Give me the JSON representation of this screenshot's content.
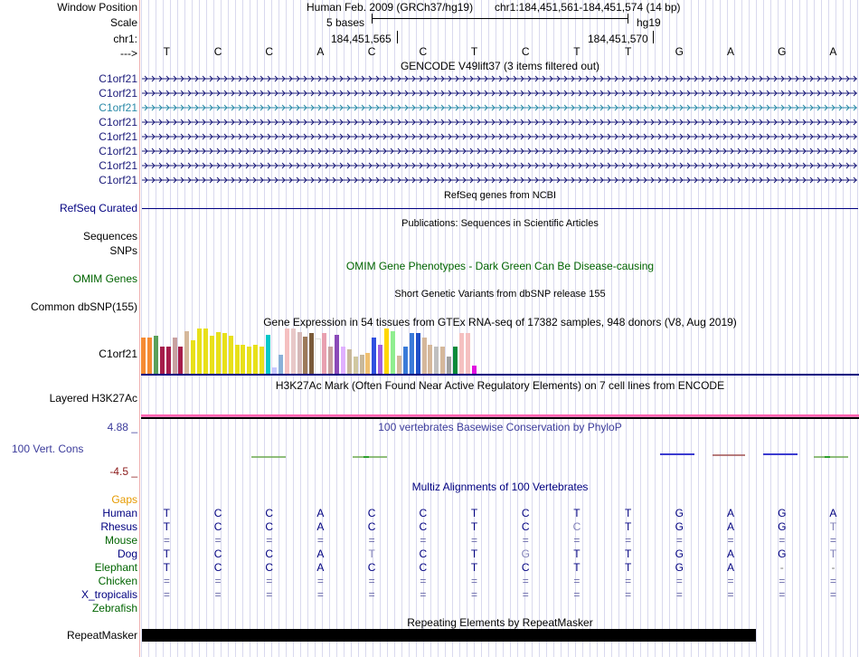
{
  "header": {
    "window_position_label": "Window Position",
    "scale_label": "Scale",
    "chrom_label": "chr1:",
    "arrow_label": "--->",
    "assembly": "Human Feb. 2009 (GRCh37/hg19)",
    "position": "chr1:184,451,561-184,451,574 (14 bp)",
    "scale_text": "5 bases",
    "db": "hg19",
    "coord_left": "184,451,565",
    "coord_right": "184,451,570"
  },
  "sequence": [
    "T",
    "C",
    "C",
    "A",
    "C",
    "C",
    "T",
    "C",
    "T",
    "T",
    "G",
    "A",
    "G",
    "A"
  ],
  "gencode": {
    "title": "GENCODE V49lift37 (3 items filtered out)",
    "items": [
      {
        "label": "C1orf21",
        "color": "#1a1a7a"
      },
      {
        "label": "C1orf21",
        "color": "#1a1a7a"
      },
      {
        "label": "C1orf21",
        "color": "#2a8aa8"
      },
      {
        "label": "C1orf21",
        "color": "#1a1a7a"
      },
      {
        "label": "C1orf21",
        "color": "#1a1a7a"
      },
      {
        "label": "C1orf21",
        "color": "#1a1a7a"
      },
      {
        "label": "C1orf21",
        "color": "#1a1a7a"
      },
      {
        "label": "C1orf21",
        "color": "#1a1a7a"
      }
    ]
  },
  "refseq": {
    "title": "RefSeq genes from NCBI",
    "label": "RefSeq Curated"
  },
  "publications": {
    "title": "Publications: Sequences in Scientific Articles",
    "label": "Sequences"
  },
  "snps": {
    "label": "SNPs"
  },
  "omim": {
    "title": "OMIM Gene Phenotypes - Dark Green Can Be Disease-causing",
    "label": "OMIM Genes"
  },
  "dbsnp": {
    "title": "Short Genetic Variants from dbSNP release 155",
    "label": "Common dbSNP(155)"
  },
  "gtex": {
    "title": "Gene Expression in 54 tissues from GTEx RNA-seq of 17382 samples, 948 donors (V8, Aug 2019)",
    "label": "C1orf21",
    "values": [
      0.78,
      0.78,
      0.82,
      0.58,
      0.58,
      0.78,
      0.58,
      0.92,
      0.72,
      0.98,
      0.98,
      0.82,
      0.9,
      0.88,
      0.82,
      0.62,
      0.62,
      0.58,
      0.62,
      0.58,
      0.85,
      0.14,
      0.42,
      0.98,
      0.98,
      0.9,
      0.8,
      0.88,
      0.74,
      0.88,
      0.58,
      0.85,
      0.58,
      0.52,
      0.38,
      0.42,
      0.45,
      0.78,
      0.62,
      0.98,
      0.92,
      0.4,
      0.58,
      0.88,
      0.88,
      0.78,
      0.62,
      0.58,
      0.58,
      0.38,
      0.58,
      0.88,
      0.88,
      0.18
    ],
    "colors": [
      "#f58b33",
      "#f58b33",
      "#5aa05a",
      "#a61d4b",
      "#a61d4b",
      "#c8a0a0",
      "#a61d4b",
      "#d5b89b",
      "#e8e01a",
      "#e8e01a",
      "#e8e01a",
      "#e8e01a",
      "#e8e01a",
      "#e8e01a",
      "#e8e01a",
      "#e8e01a",
      "#e8e01a",
      "#e8e01a",
      "#e8e01a",
      "#e8e01a",
      "#00c8c8",
      "#c8c8ff",
      "#8ab0d8",
      "#f5c0c0",
      "#e8c8c8",
      "#d5b8b8",
      "#9c7a5a",
      "#7a5a3a",
      "#ffffff",
      "#e8a0b0",
      "#c8a0a0",
      "#8a4ab8",
      "#e0b0ff",
      "#c8b89b",
      "#d0c8a0",
      "#c8b89b",
      "#f0c070",
      "#3050e0",
      "#a060e0",
      "#ffd700",
      "#90ee90",
      "#d5b89b",
      "#3a7ad8",
      "#3a7ad8",
      "#2050c8",
      "#d5b89b",
      "#d5b89b",
      "#c0c0c0",
      "#d5b89b",
      "#a0a0a0",
      "#0a8a3a",
      "#f5c0c0",
      "#f5c0c0",
      "#e010e0"
    ]
  },
  "h3k27ac": {
    "title": "H3K27Ac Mark (Often Found Near Active Regulatory Elements) on 7 cell lines from ENCODE",
    "label": "Layered H3K27Ac"
  },
  "cons": {
    "title": "100 vertebrates Basewise Conservation by PhyloP",
    "label": "100 Vert. Cons",
    "max": "4.88 _",
    "min": "-4.5 _"
  },
  "multiz": {
    "title": "Multiz Alignments of 100 Vertebrates",
    "gaps_label": "Gaps",
    "species": [
      {
        "name": "Human",
        "color": "#000080",
        "bases": [
          "T",
          "C",
          "C",
          "A",
          "C",
          "C",
          "T",
          "C",
          "T",
          "T",
          "G",
          "A",
          "G",
          "A"
        ]
      },
      {
        "name": "Rhesus",
        "color": "#000080",
        "bases": [
          "T",
          "C",
          "C",
          "A",
          "C",
          "C",
          "T",
          "C",
          "C",
          "T",
          "G",
          "A",
          "G",
          "T"
        ]
      },
      {
        "name": "Mouse",
        "color": "#006400",
        "bases": [
          "=",
          "=",
          "=",
          "=",
          "=",
          "=",
          "=",
          "=",
          "=",
          "=",
          "=",
          "=",
          "=",
          "="
        ]
      },
      {
        "name": "Dog",
        "color": "#000080",
        "bases": [
          "T",
          "C",
          "C",
          "A",
          "T",
          "C",
          "T",
          "G",
          "T",
          "T",
          "G",
          "A",
          "G",
          "T"
        ]
      },
      {
        "name": "Elephant",
        "color": "#006400",
        "bases": [
          "T",
          "C",
          "C",
          "A",
          "C",
          "C",
          "T",
          "C",
          "T",
          "T",
          "G",
          "A",
          "-",
          "-"
        ]
      },
      {
        "name": "Chicken",
        "color": "#006400",
        "bases": [
          "=",
          "=",
          "=",
          "=",
          "=",
          "=",
          "=",
          "=",
          "=",
          "=",
          "=",
          "=",
          "=",
          "="
        ]
      },
      {
        "name": "X_tropicalis",
        "color": "#000080",
        "bases": [
          "=",
          "=",
          "=",
          "=",
          "=",
          "=",
          "=",
          "=",
          "=",
          "=",
          "=",
          "=",
          "=",
          "="
        ]
      },
      {
        "name": "Zebrafish",
        "color": "#006400",
        "bases": [
          "",
          "",
          "",
          "",
          "",
          "",
          "",
          "",
          "",
          "",
          "",
          "",
          "",
          ""
        ]
      }
    ]
  },
  "repeatmasker": {
    "title": "Repeating Elements by RepeatMasker",
    "label": "RepeatMasker"
  }
}
